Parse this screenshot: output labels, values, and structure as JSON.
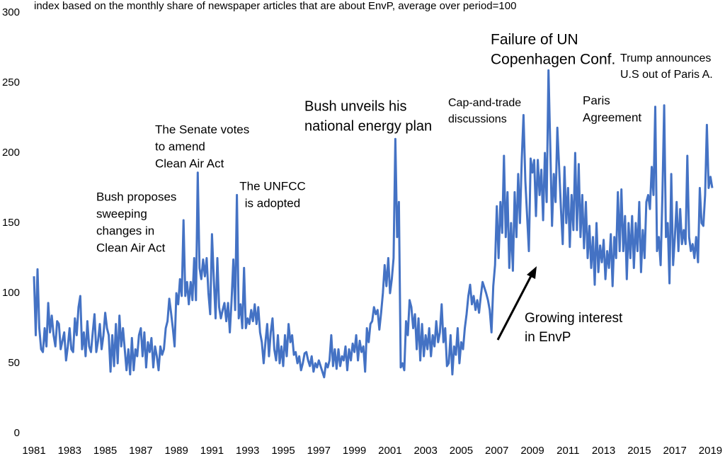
{
  "chart_data": {
    "type": "line",
    "title": "index based on the monthly share of newspaper articles that are about EnvP, average over period=100",
    "color": "#4472c4",
    "xlim": [
      1981,
      2019.3
    ],
    "ylim": [
      0,
      300
    ],
    "xticks": [
      1981,
      1983,
      1985,
      1987,
      1989,
      1991,
      1993,
      1995,
      1997,
      1999,
      2001,
      2003,
      2005,
      2007,
      2009,
      2011,
      2013,
      2015,
      2017,
      2019
    ],
    "yticks": [
      0,
      50,
      100,
      150,
      200,
      250,
      300
    ],
    "x": [
      1981,
      1981.1,
      1981.2,
      1981.3,
      1981.4,
      1981.5,
      1981.6,
      1981.7,
      1981.8,
      1981.9,
      1982,
      1982.1,
      1982.2,
      1982.3,
      1982.4,
      1982.5,
      1982.6,
      1982.7,
      1982.8,
      1982.9,
      1983,
      1983.1,
      1983.2,
      1983.3,
      1983.4,
      1983.5,
      1983.6,
      1983.7,
      1983.8,
      1983.9,
      1984,
      1984.1,
      1984.2,
      1984.3,
      1984.4,
      1984.5,
      1984.6,
      1984.7,
      1984.8,
      1984.9,
      1985,
      1985.1,
      1985.2,
      1985.3,
      1985.4,
      1985.5,
      1985.6,
      1985.7,
      1985.8,
      1985.9,
      1986,
      1986.1,
      1986.2,
      1986.3,
      1986.4,
      1986.5,
      1986.6,
      1986.7,
      1986.8,
      1986.9,
      1987,
      1987.1,
      1987.2,
      1987.3,
      1987.4,
      1987.5,
      1987.6,
      1987.7,
      1987.8,
      1987.9,
      1988,
      1988.1,
      1988.2,
      1988.3,
      1988.4,
      1988.5,
      1988.6,
      1988.7,
      1988.8,
      1988.9,
      1989,
      1989.1,
      1989.2,
      1989.3,
      1989.4,
      1989.5,
      1989.6,
      1989.7,
      1989.8,
      1989.9,
      1990,
      1990.1,
      1990.2,
      1990.3,
      1990.4,
      1990.5,
      1990.6,
      1990.7,
      1990.8,
      1990.9,
      1991,
      1991.1,
      1991.2,
      1991.3,
      1991.4,
      1991.5,
      1991.6,
      1991.7,
      1991.8,
      1991.9,
      1992,
      1992.1,
      1992.2,
      1992.3,
      1992.4,
      1992.5,
      1992.6,
      1992.7,
      1992.8,
      1992.9,
      1993,
      1993.1,
      1993.2,
      1993.3,
      1993.4,
      1993.5,
      1993.6,
      1993.7,
      1993.8,
      1993.9,
      1994,
      1994.1,
      1994.2,
      1994.3,
      1994.4,
      1994.5,
      1994.6,
      1994.7,
      1994.8,
      1994.9,
      1995,
      1995.1,
      1995.2,
      1995.3,
      1995.4,
      1995.5,
      1995.6,
      1995.7,
      1995.8,
      1995.9,
      1996,
      1996.1,
      1996.2,
      1996.3,
      1996.4,
      1996.5,
      1996.6,
      1996.7,
      1996.8,
      1996.9,
      1997,
      1997.1,
      1997.2,
      1997.3,
      1997.4,
      1997.5,
      1997.6,
      1997.7,
      1997.8,
      1997.9,
      1998,
      1998.1,
      1998.2,
      1998.3,
      1998.4,
      1998.5,
      1998.6,
      1998.7,
      1998.8,
      1998.9,
      1999,
      1999.1,
      1999.2,
      1999.3,
      1999.4,
      1999.5,
      1999.6,
      1999.7,
      1999.8,
      1999.9,
      2000,
      2000.1,
      2000.2,
      2000.3,
      2000.4,
      2000.5,
      2000.6,
      2000.7,
      2000.8,
      2000.9,
      2001,
      2001.1,
      2001.2,
      2001.3,
      2001.4,
      2001.5,
      2001.6,
      2001.7,
      2001.8,
      2001.9,
      2002,
      2002.1,
      2002.2,
      2002.3,
      2002.4,
      2002.5,
      2002.6,
      2002.7,
      2002.8,
      2002.9,
      2003,
      2003.1,
      2003.2,
      2003.3,
      2003.4,
      2003.5,
      2003.6,
      2003.7,
      2003.8,
      2003.9,
      2004,
      2004.1,
      2004.2,
      2004.3,
      2004.4,
      2004.5,
      2004.6,
      2004.7,
      2004.8,
      2004.9,
      2005,
      2005.1,
      2005.2,
      2005.3,
      2005.4,
      2005.5,
      2005.6,
      2005.7,
      2005.8,
      2005.9,
      2006,
      2006.1,
      2006.2,
      2006.3,
      2006.4,
      2006.5,
      2006.6,
      2006.7,
      2006.8,
      2006.9,
      2007,
      2007.1,
      2007.2,
      2007.3,
      2007.4,
      2007.5,
      2007.6,
      2007.7,
      2007.8,
      2007.9,
      2008,
      2008.1,
      2008.2,
      2008.3,
      2008.4,
      2008.5,
      2008.6,
      2008.7,
      2008.8,
      2008.9,
      2009,
      2009.1,
      2009.2,
      2009.3,
      2009.4,
      2009.5,
      2009.6,
      2009.7,
      2009.8,
      2009.9,
      2010,
      2010.1,
      2010.2,
      2010.3,
      2010.4,
      2010.5,
      2010.6,
      2010.7,
      2010.8,
      2010.9,
      2011,
      2011.1,
      2011.2,
      2011.3,
      2011.4,
      2011.5,
      2011.6,
      2011.7,
      2011.8,
      2011.9,
      2012,
      2012.1,
      2012.2,
      2012.3,
      2012.4,
      2012.5,
      2012.6,
      2012.7,
      2012.8,
      2012.9,
      2013,
      2013.1,
      2013.2,
      2013.3,
      2013.4,
      2013.5,
      2013.6,
      2013.7,
      2013.8,
      2013.9,
      2014,
      2014.1,
      2014.2,
      2014.3,
      2014.4,
      2014.5,
      2014.6,
      2014.7,
      2014.8,
      2014.9,
      2015,
      2015.1,
      2015.2,
      2015.3,
      2015.4,
      2015.5,
      2015.6,
      2015.7,
      2015.8,
      2015.9,
      2016,
      2016.1,
      2016.2,
      2016.3,
      2016.4,
      2016.5,
      2016.6,
      2016.7,
      2016.8,
      2016.9,
      2017,
      2017.1,
      2017.2,
      2017.3,
      2017.4,
      2017.5,
      2017.6,
      2017.7,
      2017.8,
      2017.9,
      2018,
      2018.1,
      2018.2,
      2018.3,
      2018.4,
      2018.5,
      2018.6,
      2018.7,
      2018.8,
      2018.9,
      2019,
      2019.1
    ],
    "values": [
      112,
      70,
      117,
      75,
      60,
      58,
      75,
      62,
      93,
      72,
      84,
      70,
      62,
      80,
      78,
      60,
      66,
      72,
      52,
      62,
      75,
      60,
      58,
      82,
      70,
      90,
      98,
      60,
      72,
      55,
      80,
      62,
      58,
      72,
      85,
      58,
      66,
      78,
      60,
      70,
      86,
      75,
      70,
      44,
      70,
      48,
      78,
      50,
      84,
      62,
      75,
      60,
      45,
      60,
      42,
      68,
      45,
      60,
      55,
      70,
      75,
      55,
      72,
      47,
      65,
      58,
      68,
      47,
      62,
      55,
      45,
      62,
      56,
      60,
      75,
      80,
      96,
      86,
      75,
      62,
      100,
      92,
      110,
      98,
      152,
      98,
      108,
      92,
      108,
      95,
      125,
      95,
      186,
      118,
      110,
      124,
      112,
      125,
      100,
      85,
      142,
      110,
      82,
      125,
      90,
      82,
      88,
      93,
      80,
      93,
      72,
      95,
      124,
      88,
      170,
      82,
      92,
      75,
      118,
      75,
      82,
      78,
      88,
      80,
      92,
      78,
      90,
      72,
      65,
      50,
      65,
      78,
      55,
      72,
      82,
      60,
      52,
      70,
      50,
      62,
      48,
      70,
      55,
      78,
      65,
      70,
      56,
      58,
      50,
      55,
      45,
      50,
      57,
      58,
      52,
      48,
      55,
      44,
      50,
      47,
      52,
      48,
      44,
      40,
      50,
      47,
      52,
      70,
      48,
      60,
      46,
      60,
      48,
      55,
      52,
      62,
      45,
      60,
      52,
      64,
      58,
      70,
      52,
      66,
      58,
      62,
      44,
      75,
      65,
      78,
      80,
      90,
      85,
      88,
      74,
      86,
      100,
      120,
      105,
      125,
      100,
      110,
      125,
      210,
      140,
      165,
      47,
      50,
      45,
      80,
      70,
      95,
      90,
      75,
      85,
      60,
      82,
      52,
      78,
      55,
      70,
      60,
      75,
      55,
      70,
      62,
      80,
      65,
      72,
      92,
      65,
      75,
      48,
      50,
      70,
      42,
      62,
      56,
      75,
      50,
      65,
      60,
      75,
      85,
      98,
      106,
      92,
      98,
      88,
      95,
      86,
      98,
      108,
      104,
      100,
      95,
      88,
      72,
      105,
      120,
      162,
      125,
      165,
      143,
      198,
      140,
      172,
      118,
      150,
      116,
      172,
      140,
      185,
      150,
      195,
      227,
      180,
      155,
      130,
      196,
      186,
      195,
      155,
      195,
      170,
      188,
      152,
      200,
      165,
      259,
      205,
      148,
      185,
      165,
      218,
      190,
      160,
      135,
      190,
      150,
      175,
      133,
      170,
      145,
      200,
      145,
      192,
      140,
      170,
      132,
      165,
      125,
      148,
      118,
      140,
      106,
      150,
      115,
      134,
      122,
      138,
      110,
      130,
      118,
      142,
      105,
      140,
      125,
      172,
      130,
      174,
      130,
      155,
      110,
      150,
      125,
      155,
      118,
      150,
      130,
      165,
      115,
      145,
      125,
      165,
      170,
      160,
      190,
      170,
      233,
      130,
      140,
      120,
      170,
      234,
      140,
      150,
      107,
      185,
      120,
      140,
      165,
      130,
      160,
      135,
      145,
      135,
      198,
      140,
      130,
      135,
      125,
      140,
      122,
      175,
      150,
      148,
      170,
      220,
      175,
      183,
      175
    ],
    "annotations": [
      {
        "lines": [
          "Bush proposes",
          "sweeping",
          "changes in",
          "Clean Air Act"
        ]
      },
      {
        "lines": [
          "The Senate votes",
          "to amend",
          "Clean Air Act"
        ]
      },
      {
        "lines": [
          "The UNFCC",
          "is adopted"
        ]
      },
      {
        "lines": [
          "Bush unveils his",
          "national energy plan"
        ]
      },
      {
        "lines": [
          "Cap-and-trade",
          "discussions"
        ]
      },
      {
        "lines": [
          "Failure of UN",
          "Copenhagen Conf."
        ]
      },
      {
        "lines": [
          "Paris",
          "Agreement"
        ]
      },
      {
        "lines": [
          "Trump announces",
          "U.S out of Paris A."
        ]
      },
      {
        "lines": [
          "Growing interest",
          "in EnvP"
        ]
      }
    ]
  }
}
